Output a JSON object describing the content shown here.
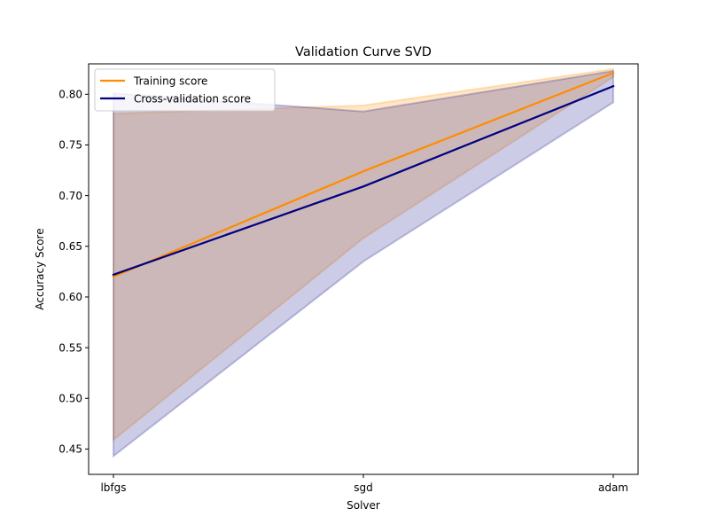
{
  "chart_data": {
    "type": "line",
    "title": "Validation Curve SVD",
    "xlabel": "Solver",
    "ylabel": "Accuracy Score",
    "categories": [
      "lbfgs",
      "sgd",
      "adam"
    ],
    "ylim": [
      0.425,
      0.83
    ],
    "yticks": [
      0.45,
      0.5,
      0.55,
      0.6,
      0.65,
      0.7,
      0.75,
      0.8
    ],
    "ytick_labels": [
      "0.45",
      "0.50",
      "0.55",
      "0.60",
      "0.65",
      "0.70",
      "0.75",
      "0.80"
    ],
    "grid": false,
    "legend_position": "upper-left",
    "series": [
      {
        "name": "Training score",
        "color": "#ff8c00",
        "values": [
          0.62,
          0.724,
          0.821
        ],
        "band_lower": [
          0.459,
          0.658,
          0.817
        ],
        "band_upper": [
          0.781,
          0.789,
          0.825
        ]
      },
      {
        "name": "Cross-validation score",
        "color": "#000080",
        "values": [
          0.622,
          0.709,
          0.808
        ],
        "band_lower": [
          0.443,
          0.635,
          0.792
        ],
        "band_upper": [
          0.801,
          0.783,
          0.823
        ]
      }
    ]
  }
}
